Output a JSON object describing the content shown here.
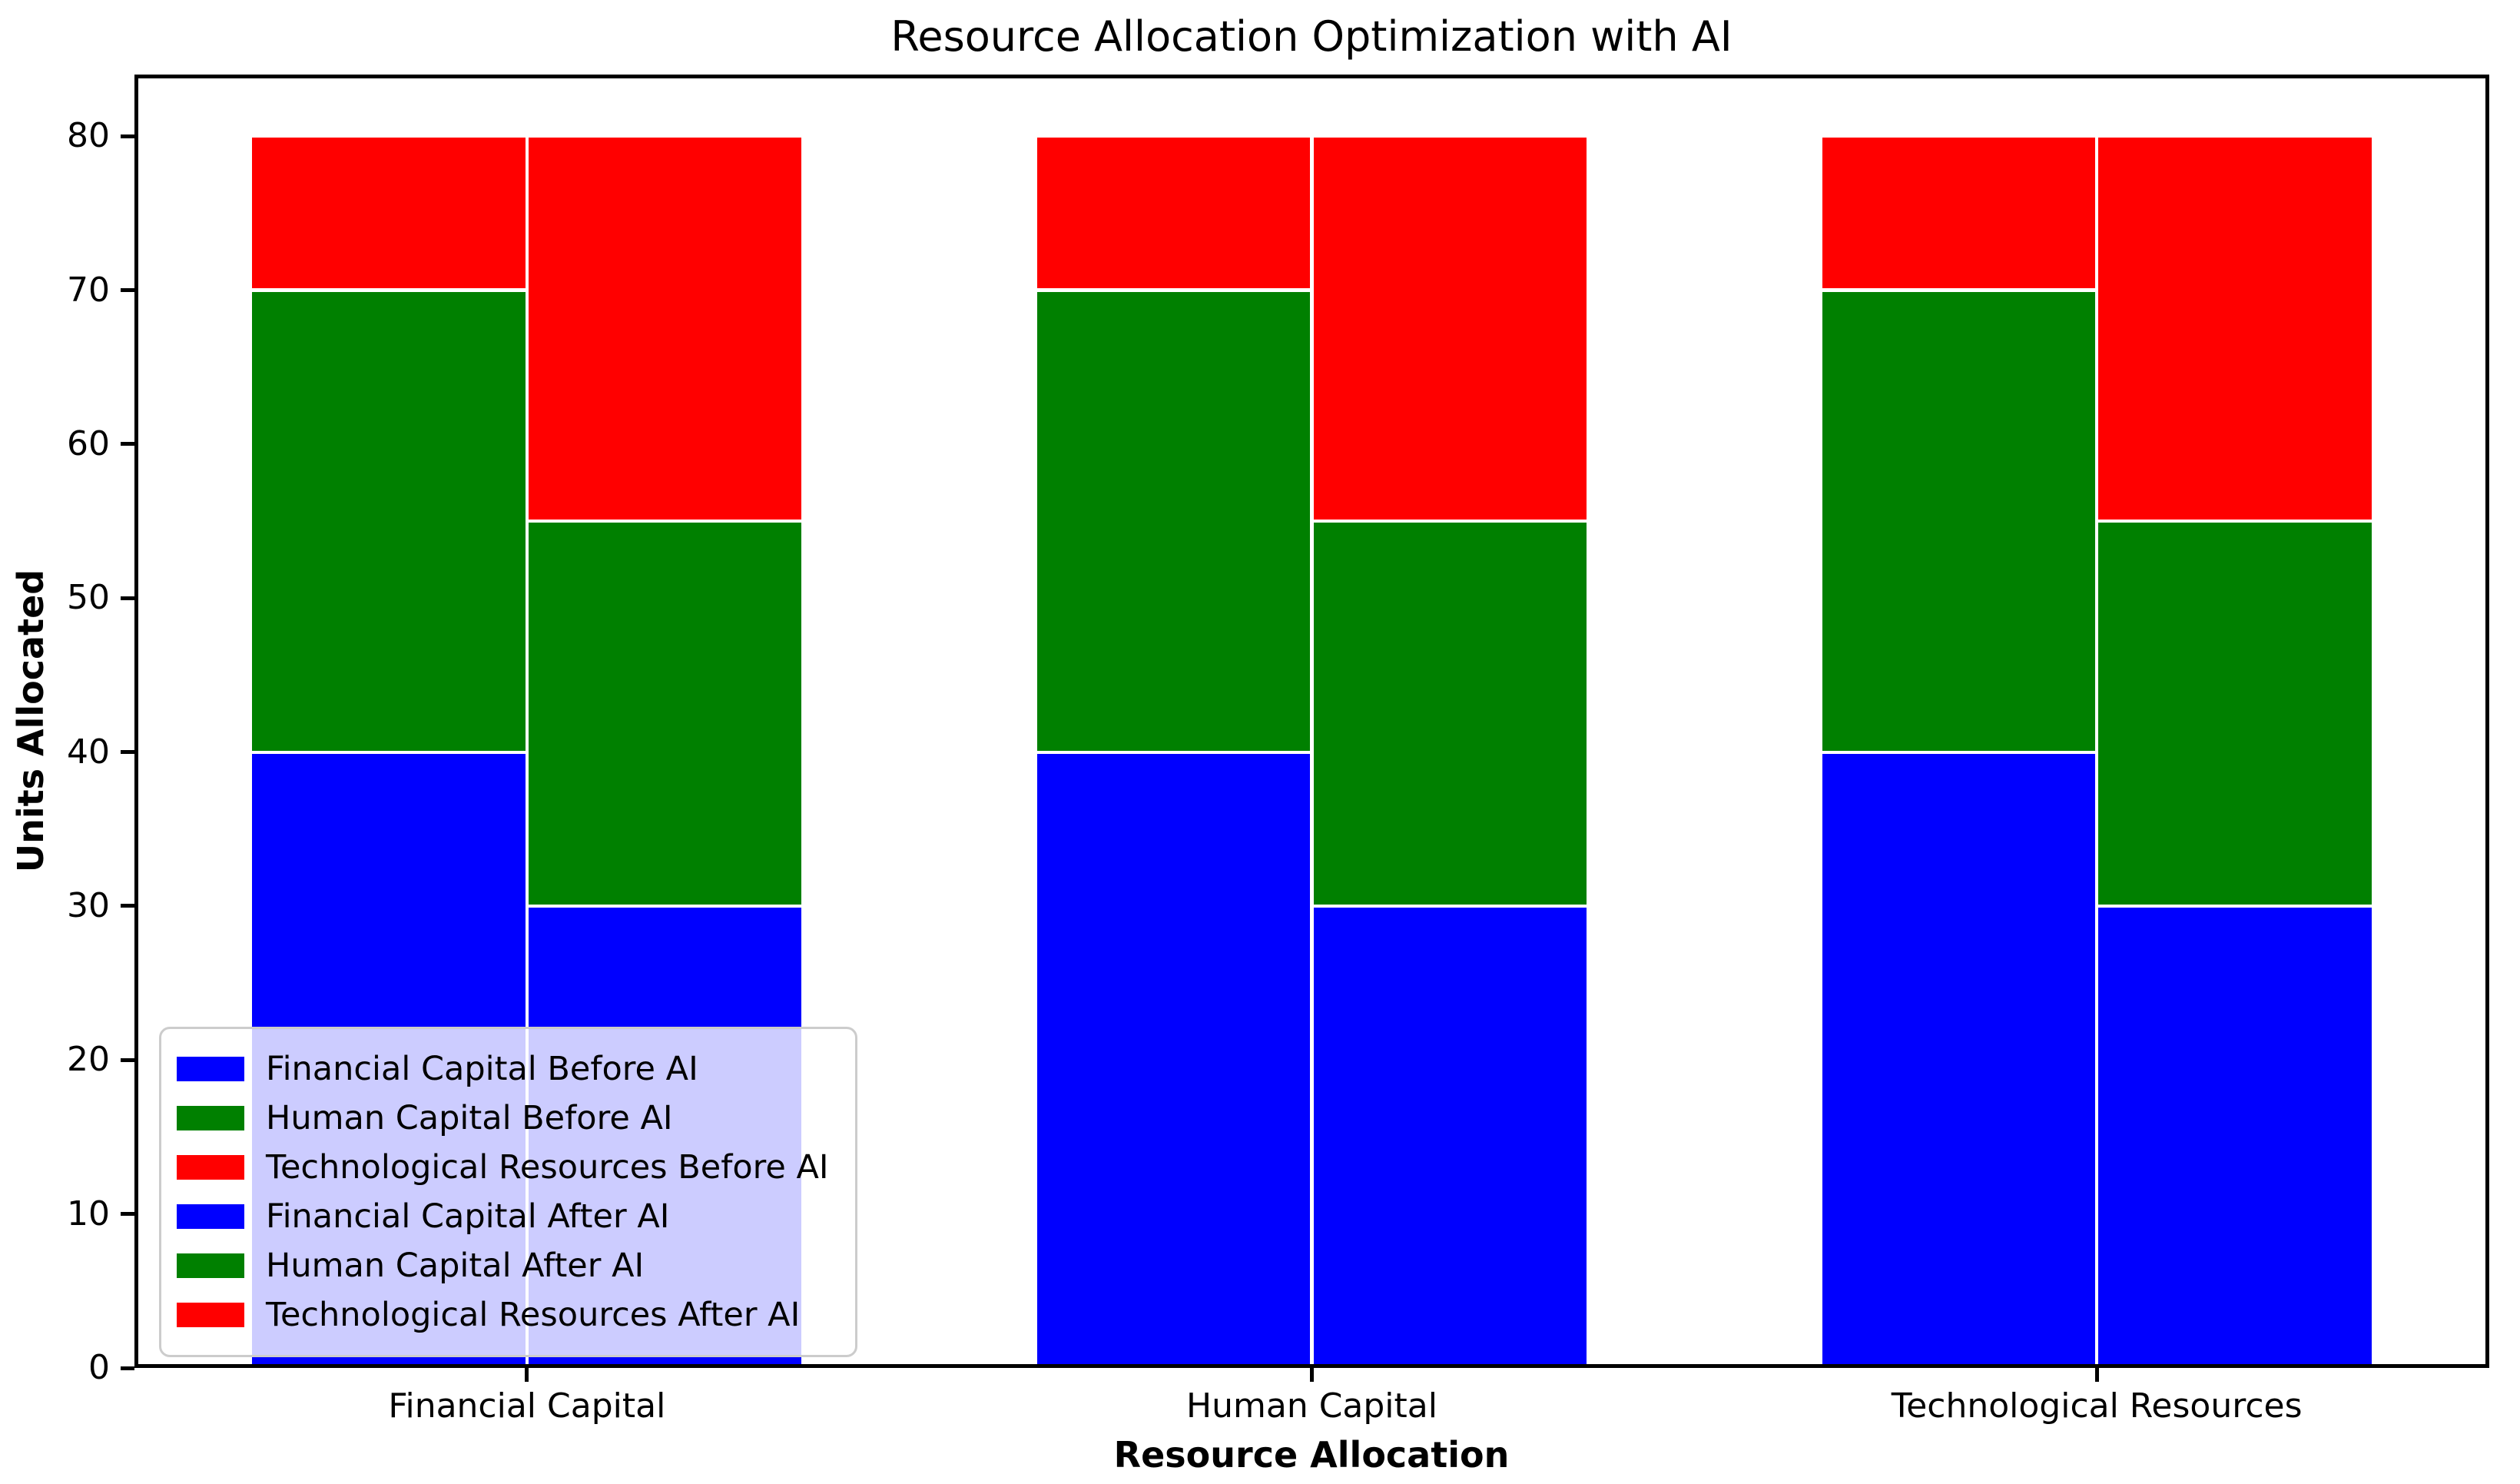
{
  "chart_data": {
    "type": "bar",
    "stacked": true,
    "grouped": true,
    "title": "Resource Allocation Optimization with AI",
    "xlabel": "Resource Allocation",
    "ylabel": "Units Allocated",
    "categories": [
      "Financial Capital",
      "Human Capital",
      "Technological Resources"
    ],
    "ylim": [
      0,
      84
    ],
    "yticks": [
      0,
      10,
      20,
      30,
      40,
      50,
      60,
      70,
      80
    ],
    "grid": false,
    "bar_width_frac": 0.1173,
    "bar_edge_color": "#ffffff",
    "groups": [
      {
        "name": "Before AI",
        "series": [
          {
            "name": "Financial Capital Before AI",
            "color": "#0000ff",
            "values": [
              40,
              40,
              40
            ]
          },
          {
            "name": "Human Capital Before AI",
            "color": "#008000",
            "values": [
              30,
              30,
              30
            ]
          },
          {
            "name": "Technological Resources Before AI",
            "color": "#ff0000",
            "values": [
              10,
              10,
              10
            ]
          }
        ]
      },
      {
        "name": "After AI",
        "series": [
          {
            "name": "Financial Capital After AI",
            "color": "#0000ff",
            "values": [
              30,
              30,
              30
            ]
          },
          {
            "name": "Human Capital After AI",
            "color": "#008000",
            "values": [
              25,
              25,
              25
            ]
          },
          {
            "name": "Technological Resources After AI",
            "color": "#ff0000",
            "values": [
              25,
              25,
              25
            ]
          }
        ]
      }
    ],
    "legend": {
      "position": "lower-left",
      "entries": [
        {
          "label": "Financial Capital Before AI",
          "color": "#0000ff"
        },
        {
          "label": "Human Capital Before AI",
          "color": "#008000"
        },
        {
          "label": "Technological Resources Before AI",
          "color": "#ff0000"
        },
        {
          "label": "Financial Capital After AI",
          "color": "#0000ff"
        },
        {
          "label": "Human Capital After AI",
          "color": "#008000"
        },
        {
          "label": "Technological Resources After AI",
          "color": "#ff0000"
        }
      ]
    },
    "colors": {
      "financial_capital": "#0000ff",
      "human_capital": "#008000",
      "technological_resources": "#ff0000",
      "axis": "#000000",
      "background": "#ffffff",
      "legend_border": "#cccccc"
    }
  }
}
